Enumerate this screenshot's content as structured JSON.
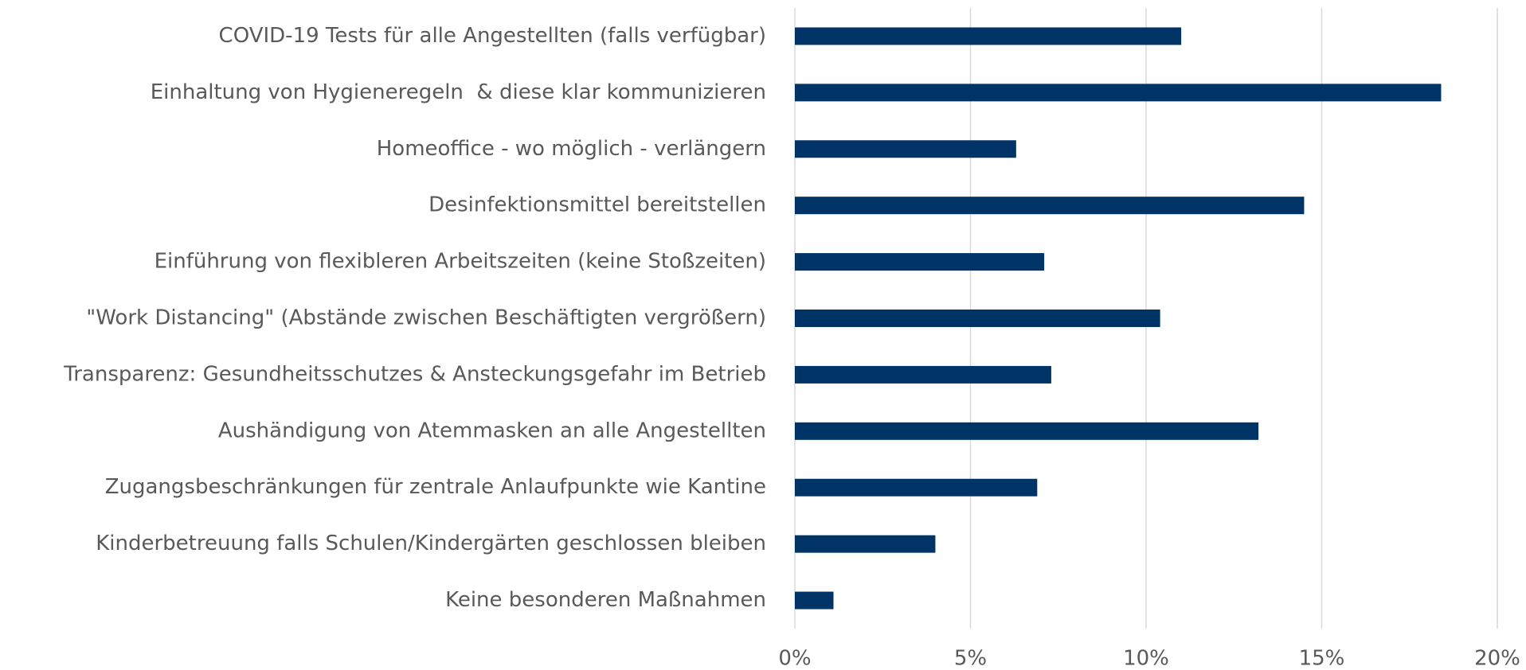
{
  "chart_data": {
    "type": "barh",
    "categories": [
      "COVID-19 Tests für alle Angestellten (falls verfügbar)",
      "Einhaltung von Hygieneregeln  & diese klar kommunizieren",
      "Homeoffice - wo möglich - verlängern",
      "Desinfektionsmittel bereitstellen",
      "Einführung von flexibleren Arbeitszeiten (keine Stoßzeiten)",
      "\"Work Distancing\" (Abstände zwischen Beschäftigten vergrößern)",
      "Transparenz: Gesundheitsschutzes & Ansteckungsgefahr im Betrieb",
      "Aushändigung von Atemmasken an alle Angestellten",
      "Zugangsbeschränkungen für zentrale Anlaufpunkte wie Kantine",
      "Kinderbetreuung falls Schulen/Kindergärten geschlossen bleiben",
      "Keine besonderen Maßnahmen"
    ],
    "values": [
      11.0,
      18.4,
      6.3,
      14.5,
      7.1,
      10.4,
      7.3,
      13.2,
      6.9,
      4.0,
      1.1
    ],
    "color": "#003366",
    "xlim": [
      0,
      20
    ],
    "xticks": [
      {
        "value": 0,
        "label": "0%"
      },
      {
        "value": 5,
        "label": "5%"
      },
      {
        "value": 10,
        "label": "10%"
      },
      {
        "value": 15,
        "label": "15%"
      },
      {
        "value": 20,
        "label": "20%"
      }
    ],
    "grid": true
  }
}
